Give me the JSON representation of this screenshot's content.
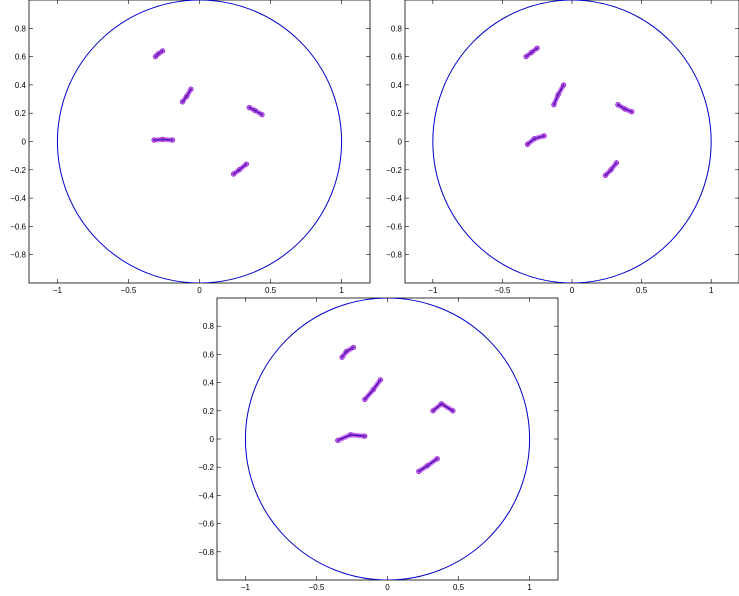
{
  "colors": {
    "circle": "#0000cc",
    "cluster_fill": "#cc66ff",
    "cluster_edge": "#9933cc",
    "cluster_core": "#3311aa",
    "axes": "#000000"
  },
  "chart_data": [
    {
      "type": "scatter",
      "xlim": [
        -1.2,
        1.2
      ],
      "ylim": [
        -1,
        1
      ],
      "x_ticks": [
        -1,
        -0.5,
        0,
        0.5,
        1
      ],
      "x_tick_labels": [
        "−1",
        "−0.5",
        "0",
        "0.5",
        "1"
      ],
      "y_ticks": [
        0.8,
        0.6,
        0.4,
        0.2,
        0,
        -0.2,
        -0.4,
        -0.6,
        -0.8
      ],
      "y_tick_labels": [
        "0.8",
        "0.6",
        "0.4",
        "0.2",
        "0",
        "−0.2",
        "−0.4",
        "−0.6",
        "−0.8"
      ],
      "circle": {
        "center": [
          0,
          0
        ],
        "radius": 1
      },
      "clusters": [
        {
          "points": [
            [
              -0.31,
              0.6
            ],
            [
              -0.29,
              0.62
            ],
            [
              -0.26,
              0.64
            ]
          ]
        },
        {
          "points": [
            [
              -0.12,
              0.28
            ],
            [
              -0.09,
              0.32
            ],
            [
              -0.06,
              0.37
            ]
          ]
        },
        {
          "points": [
            [
              0.35,
              0.24
            ],
            [
              0.39,
              0.22
            ],
            [
              0.44,
              0.19
            ]
          ]
        },
        {
          "points": [
            [
              -0.32,
              0.01
            ],
            [
              -0.26,
              0.015
            ],
            [
              -0.19,
              0.01
            ]
          ]
        },
        {
          "points": [
            [
              0.24,
              -0.23
            ],
            [
              0.28,
              -0.2
            ],
            [
              0.33,
              -0.16
            ]
          ]
        }
      ]
    },
    {
      "type": "scatter",
      "xlim": [
        -1.2,
        1.2
      ],
      "ylim": [
        -1,
        1
      ],
      "x_ticks": [
        -1,
        -0.5,
        0,
        0.5,
        1
      ],
      "x_tick_labels": [
        "−1",
        "−0.5",
        "0",
        "0.5",
        "1"
      ],
      "y_ticks": [
        0.8,
        0.6,
        0.4,
        0.2,
        0,
        -0.2,
        -0.4,
        -0.6,
        -0.8
      ],
      "y_tick_labels": [
        "0.8",
        "0.6",
        "0.4",
        "0.2",
        "0",
        "−0.2",
        "−0.4",
        "−0.6",
        "−0.8"
      ],
      "circle": {
        "center": [
          0,
          0
        ],
        "radius": 1
      },
      "clusters": [
        {
          "points": [
            [
              -0.33,
              0.6
            ],
            [
              -0.29,
              0.63
            ],
            [
              -0.25,
              0.66
            ]
          ]
        },
        {
          "points": [
            [
              -0.13,
              0.26
            ],
            [
              -0.1,
              0.33
            ],
            [
              -0.06,
              0.4
            ]
          ]
        },
        {
          "points": [
            [
              0.33,
              0.26
            ],
            [
              0.38,
              0.23
            ],
            [
              0.43,
              0.21
            ]
          ]
        },
        {
          "points": [
            [
              -0.32,
              -0.02
            ],
            [
              -0.27,
              0.02
            ],
            [
              -0.2,
              0.04
            ]
          ]
        },
        {
          "points": [
            [
              0.24,
              -0.24
            ],
            [
              0.28,
              -0.2
            ],
            [
              0.32,
              -0.15
            ]
          ]
        }
      ]
    },
    {
      "type": "scatter",
      "xlim": [
        -1.2,
        1.2
      ],
      "ylim": [
        -1,
        1
      ],
      "x_ticks": [
        -1,
        -0.5,
        0,
        0.5,
        1
      ],
      "x_tick_labels": [
        "−1",
        "−0.5",
        "0",
        "0.5",
        "1"
      ],
      "y_ticks": [
        0.8,
        0.6,
        0.4,
        0.2,
        0,
        -0.2,
        -0.4,
        -0.6,
        -0.8
      ],
      "y_tick_labels": [
        "0.8",
        "0.6",
        "0.4",
        "0.2",
        "0",
        "−0.2",
        "−0.4",
        "−0.6",
        "−0.8"
      ],
      "circle": {
        "center": [
          0,
          0
        ],
        "radius": 1
      },
      "clusters": [
        {
          "points": [
            [
              -0.32,
              0.58
            ],
            [
              -0.29,
              0.62
            ],
            [
              -0.24,
              0.65
            ]
          ]
        },
        {
          "points": [
            [
              -0.16,
              0.28
            ],
            [
              -0.1,
              0.35
            ],
            [
              -0.05,
              0.42
            ]
          ]
        },
        {
          "points": [
            [
              0.32,
              0.2
            ],
            [
              0.38,
              0.25
            ],
            [
              0.46,
              0.2
            ]
          ]
        },
        {
          "points": [
            [
              -0.35,
              -0.01
            ],
            [
              -0.26,
              0.03
            ],
            [
              -0.16,
              0.02
            ]
          ]
        },
        {
          "points": [
            [
              0.22,
              -0.23
            ],
            [
              0.28,
              -0.19
            ],
            [
              0.35,
              -0.14
            ]
          ]
        }
      ]
    }
  ]
}
